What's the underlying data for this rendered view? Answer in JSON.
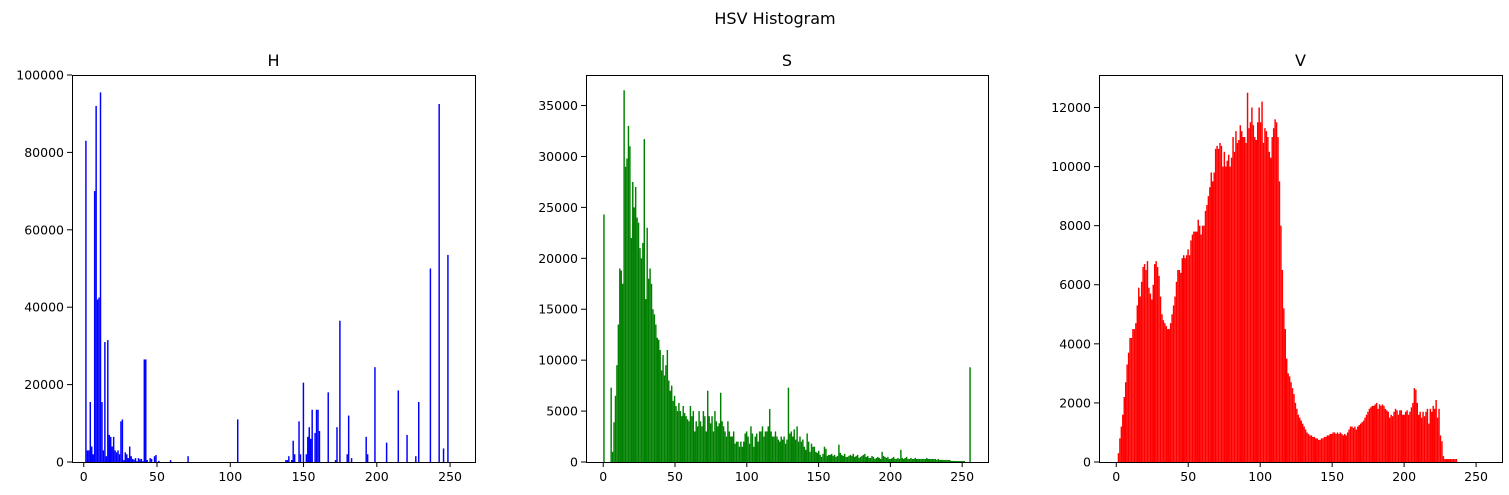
{
  "figure_title": "HSV Histogram",
  "chart_data": [
    {
      "type": "bar",
      "title": "H",
      "color": "#0000ff",
      "xlim": [
        -8,
        267
      ],
      "ylim": [
        0,
        100000
      ],
      "xticks": [
        0,
        50,
        100,
        150,
        200,
        250
      ],
      "yticks": [
        0,
        20000,
        40000,
        60000,
        80000,
        100000
      ],
      "x_range": [
        0,
        255
      ],
      "values": [
        0,
        83000,
        3000,
        3000,
        15500,
        4000,
        2000,
        70000,
        92000,
        42000,
        42500,
        95500,
        15500,
        3000,
        31000,
        1500,
        31500,
        7000,
        6500,
        4000,
        6500,
        3000,
        2500,
        3000,
        2000,
        10500,
        11000,
        500,
        2500,
        2000,
        1000,
        4000,
        1500,
        800,
        600,
        1000,
        200,
        1000,
        700,
        800,
        200,
        26500,
        26500,
        500,
        0,
        1000,
        800,
        0,
        1500,
        1800,
        0,
        300,
        0,
        0,
        0,
        0,
        0,
        0,
        0,
        500,
        0,
        0,
        0,
        0,
        0,
        0,
        0,
        0,
        0,
        0,
        0,
        1500,
        0,
        0,
        0,
        0,
        0,
        0,
        0,
        0,
        0,
        0,
        0,
        0,
        0,
        0,
        0,
        0,
        0,
        0,
        0,
        0,
        0,
        0,
        0,
        0,
        0,
        0,
        0,
        0,
        0,
        0,
        0,
        0,
        0,
        11000,
        0,
        0,
        0,
        0,
        0,
        0,
        0,
        0,
        0,
        0,
        0,
        0,
        0,
        0,
        0,
        0,
        0,
        0,
        0,
        0,
        0,
        0,
        0,
        0,
        0,
        0,
        0,
        0,
        0,
        0,
        0,
        0,
        500,
        500,
        1500,
        0,
        500,
        5500,
        2000,
        0,
        0,
        10500,
        2000,
        0,
        20500,
        0,
        2000,
        6500,
        9000,
        6000,
        13500,
        0,
        7500,
        13500,
        13500,
        8000,
        0,
        0,
        0,
        0,
        0,
        18000,
        0,
        0,
        0,
        0,
        500,
        9000,
        0,
        36500,
        0,
        0,
        0,
        0,
        2000,
        12000,
        0,
        1000,
        0,
        0,
        0,
        0,
        0,
        0,
        0,
        0,
        0,
        6500,
        2000,
        0,
        0,
        0,
        0,
        24500,
        0,
        0,
        0,
        0,
        0,
        0,
        0,
        5000,
        0,
        0,
        0,
        0,
        0,
        0,
        0,
        18500,
        0,
        0,
        0,
        0,
        0,
        7000,
        0,
        0,
        0,
        0,
        0,
        1500,
        0,
        15500,
        0,
        0,
        0,
        0,
        0,
        0,
        0,
        50000,
        0,
        0,
        0,
        0,
        0,
        92500,
        0,
        0,
        3500,
        0,
        0,
        53500,
        0,
        0,
        0,
        0,
        0,
        0
      ],
      "xlabel": "",
      "ylabel": ""
    },
    {
      "type": "bar",
      "title": "S",
      "color": "#008000",
      "xlim": [
        -12,
        268
      ],
      "ylim": [
        0,
        38000
      ],
      "xticks": [
        0,
        50,
        100,
        150,
        200,
        250
      ],
      "yticks": [
        0,
        5000,
        10000,
        15000,
        20000,
        25000,
        30000,
        35000
      ],
      "x_range": [
        0,
        256
      ],
      "values": [
        24300,
        0,
        0,
        0,
        0,
        7300,
        1000,
        3900,
        6500,
        9500,
        13500,
        19000,
        18800,
        17500,
        36500,
        29000,
        29800,
        33000,
        31000,
        22000,
        27500,
        25000,
        27000,
        24000,
        23500,
        21000,
        20000,
        21500,
        31700,
        16000,
        23000,
        18000,
        19000,
        17500,
        15000,
        14500,
        13500,
        12200,
        12000,
        11000,
        9000,
        10500,
        8500,
        9500,
        11000,
        8000,
        7000,
        7500,
        6000,
        6500,
        5500,
        5000,
        5800,
        5000,
        4500,
        5500,
        4800,
        4500,
        4200,
        4000,
        5500,
        4500,
        5000,
        3000,
        4000,
        3500,
        5000,
        4000,
        3500,
        5000,
        4500,
        3000,
        7000,
        4500,
        3800,
        4500,
        3000,
        5000,
        4000,
        3500,
        3800,
        6800,
        4000,
        3500,
        3000,
        2500,
        4000,
        3000,
        2500,
        2500,
        3000,
        1800,
        2000,
        2000,
        1500,
        2000,
        1500,
        2000,
        2800,
        3000,
        2500,
        1800,
        3500,
        2800,
        1500,
        2500,
        2800,
        2000,
        3000,
        3000,
        3500,
        2500,
        3000,
        3000,
        3500,
        5200,
        3000,
        2500,
        2500,
        3000,
        2500,
        2200,
        2000,
        2500,
        2200,
        2500,
        1800,
        2200,
        7300,
        2800,
        3000,
        2500,
        3200,
        2200,
        3500,
        2000,
        2500,
        2000,
        2200,
        1500,
        1200,
        2800,
        2000,
        1000,
        1800,
        1500,
        1500,
        1000,
        900,
        1100,
        700,
        500,
        800,
        1500,
        1300,
        600,
        700,
        700,
        800,
        600,
        700,
        500,
        600,
        1700,
        900,
        700,
        600,
        800,
        500,
        500,
        600,
        700,
        600,
        800,
        500,
        600,
        700,
        400,
        500,
        600,
        700,
        800,
        500,
        600,
        400,
        400,
        600,
        500,
        300,
        400,
        500,
        400,
        300,
        1000,
        600,
        500,
        400,
        500,
        300,
        300,
        400,
        500,
        300,
        300,
        400,
        300,
        1200,
        400,
        300,
        400,
        500,
        300,
        300,
        400,
        300,
        300,
        400,
        300,
        300,
        300,
        300,
        300,
        300,
        300,
        400,
        300,
        300,
        300,
        300,
        300,
        300,
        200,
        300,
        200,
        200,
        200,
        200,
        200,
        200,
        200,
        200,
        100,
        100,
        100,
        100,
        100,
        100,
        100,
        100,
        100,
        100,
        0,
        0,
        0,
        9300
      ]
    },
    {
      "type": "bar",
      "title": "V",
      "color": "#ff0000",
      "xlim": [
        -12,
        268
      ],
      "ylim": [
        0,
        13100
      ],
      "xticks": [
        0,
        50,
        100,
        150,
        200,
        250
      ],
      "yticks": [
        0,
        2000,
        4000,
        6000,
        8000,
        10000,
        12000
      ],
      "x_range": [
        0,
        256
      ],
      "values": [
        0,
        300,
        800,
        1200,
        1600,
        2200,
        2700,
        3300,
        3700,
        4200,
        4200,
        4500,
        4500,
        4700,
        5300,
        5900,
        5600,
        6100,
        6600,
        6700,
        6500,
        6800,
        5900,
        5700,
        5500,
        6000,
        6700,
        6800,
        6600,
        6300,
        5600,
        5000,
        4800,
        4700,
        4600,
        4500,
        4500,
        4700,
        5000,
        5300,
        5600,
        6100,
        6500,
        6500,
        6400,
        6900,
        7000,
        6900,
        7000,
        7200,
        7000,
        7500,
        7700,
        7800,
        7800,
        7800,
        8200,
        8000,
        7700,
        8000,
        8000,
        8500,
        8700,
        9000,
        9300,
        9800,
        9500,
        9800,
        10600,
        10700,
        10600,
        10800,
        10700,
        10000,
        10500,
        10000,
        10200,
        10400,
        10000,
        10300,
        11000,
        10500,
        11200,
        10800,
        10900,
        11400,
        11200,
        11000,
        11000,
        10800,
        12500,
        11300,
        11500,
        12000,
        11400,
        11000,
        10900,
        11500,
        12000,
        11500,
        12200,
        10800,
        11300,
        11200,
        11000,
        10500,
        10300,
        11000,
        11300,
        11600,
        11500,
        11000,
        9500,
        8000,
        6500,
        5200,
        4500,
        3500,
        3000,
        2900,
        2700,
        2500,
        2300,
        2000,
        1800,
        1600,
        1500,
        1400,
        1300,
        1200,
        1100,
        1000,
        950,
        900,
        900,
        850,
        850,
        800,
        800,
        750,
        750,
        800,
        800,
        850,
        850,
        900,
        900,
        950,
        950,
        1000,
        1000,
        950,
        1000,
        950,
        1000,
        950,
        900,
        950,
        900,
        1000,
        1100,
        1200,
        1200,
        1150,
        1200,
        1100,
        1200,
        1250,
        1300,
        1350,
        1400,
        1500,
        1600,
        1700,
        1800,
        1850,
        1900,
        1900,
        1950,
        2000,
        1800,
        1950,
        1900,
        1950,
        1900,
        1800,
        1750,
        1700,
        1500,
        1600,
        1550,
        1700,
        1800,
        1750,
        1600,
        1750,
        1750,
        1600,
        1600,
        1700,
        1750,
        1600,
        1700,
        1850,
        2000,
        2500,
        2450,
        2000,
        1600,
        1700,
        1500,
        1700,
        1550,
        1700,
        1800,
        1300,
        1800,
        1700,
        1900,
        1800,
        2100,
        1500,
        1800,
        900,
        700,
        200,
        100,
        100,
        100,
        100,
        100,
        100,
        100,
        100,
        100,
        0,
        0,
        0,
        0,
        0,
        0,
        0,
        0,
        0,
        0,
        0,
        0,
        0,
        0,
        0,
        0,
        0,
        0,
        0
      ]
    }
  ]
}
